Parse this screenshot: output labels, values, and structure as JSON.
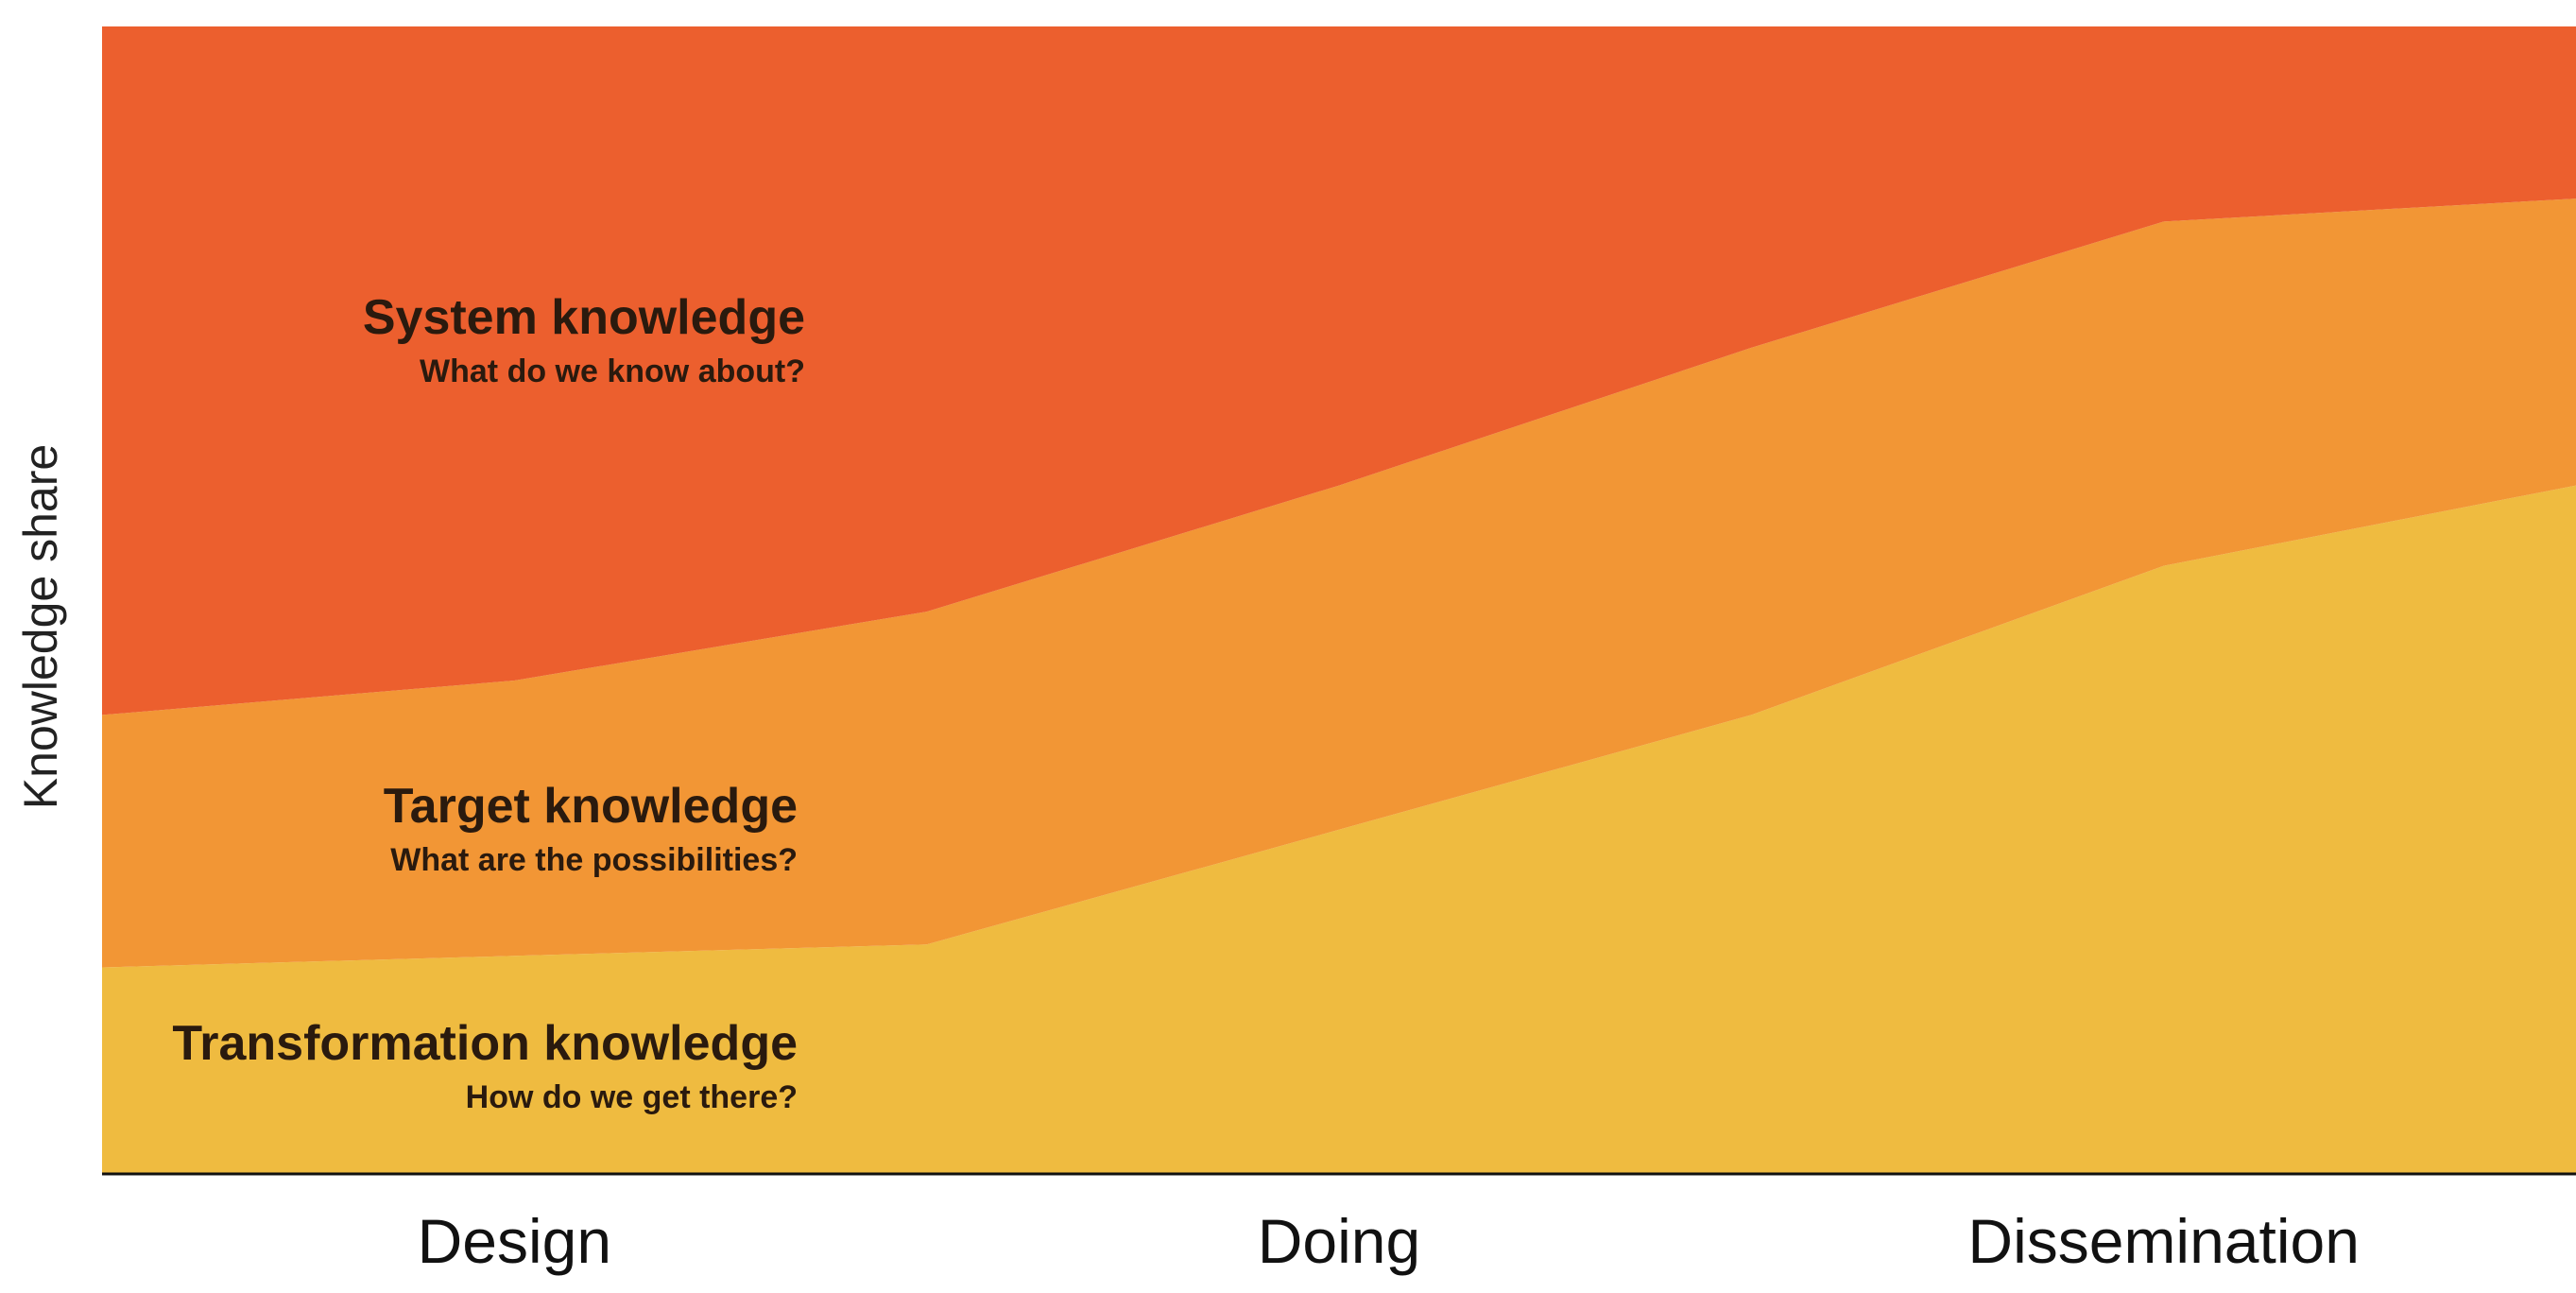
{
  "chart_data": {
    "type": "area",
    "stacked": true,
    "normalized": true,
    "ylabel": "Knowledge share",
    "xlabel": "",
    "title": "",
    "categories": [
      "Design",
      "Doing",
      "Dissemination"
    ],
    "x": [
      0,
      0.5,
      1,
      1.5,
      2,
      2.5,
      3
    ],
    "ylim": [
      0,
      100
    ],
    "grid": false,
    "phase_dividers": [
      1,
      2
    ],
    "series": [
      {
        "name": "Transformation knowledge",
        "subtitle": "How do we get there?",
        "color": "#EFBB40",
        "values": [
          18,
          19,
          20,
          30,
          40,
          53,
          60
        ]
      },
      {
        "name": "Target knowledge",
        "subtitle": "What are the possibilities?",
        "color": "#F29635",
        "values": [
          22,
          24,
          29,
          30,
          32,
          30,
          25
        ]
      },
      {
        "name": "System knowledge",
        "subtitle": "What do we know about?",
        "color": "#EC5F2E",
        "values": [
          60,
          57,
          51,
          40,
          28,
          17,
          15
        ]
      }
    ]
  }
}
